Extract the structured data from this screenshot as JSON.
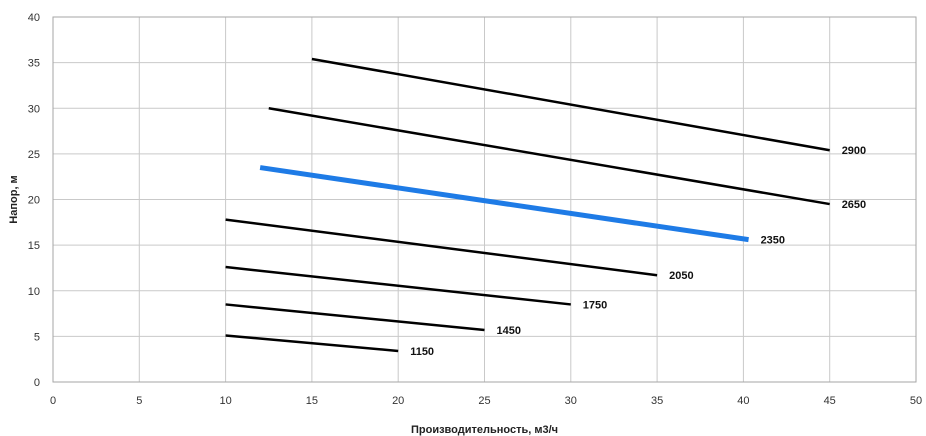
{
  "chart_data": {
    "type": "line",
    "title": "",
    "xlabel": "Производительность, м3/ч",
    "ylabel": "Напор, м",
    "xlim": [
      0,
      50
    ],
    "ylim": [
      0,
      40
    ],
    "xticks": [
      0,
      5,
      10,
      15,
      20,
      25,
      30,
      35,
      40,
      45,
      50
    ],
    "yticks": [
      0,
      5,
      10,
      15,
      20,
      25,
      30,
      35,
      40
    ],
    "grid": true,
    "legend": "none",
    "series": [
      {
        "name": "2900",
        "color": "#000000",
        "x": [
          15,
          45
        ],
        "y": [
          35.4,
          25.4
        ]
      },
      {
        "name": "2650",
        "color": "#000000",
        "x": [
          12.5,
          45
        ],
        "y": [
          30.0,
          19.5
        ]
      },
      {
        "name": "2350",
        "color": "#1e7be6",
        "x": [
          12,
          40.3
        ],
        "y": [
          23.5,
          15.6
        ]
      },
      {
        "name": "2050",
        "color": "#000000",
        "x": [
          10,
          35
        ],
        "y": [
          17.8,
          11.7
        ]
      },
      {
        "name": "1750",
        "color": "#000000",
        "x": [
          10,
          30
        ],
        "y": [
          12.6,
          8.5
        ]
      },
      {
        "name": "1450",
        "color": "#000000",
        "x": [
          10,
          25
        ],
        "y": [
          8.5,
          5.7
        ]
      },
      {
        "name": "1150",
        "color": "#000000",
        "x": [
          10,
          20
        ],
        "y": [
          5.1,
          3.4
        ]
      }
    ]
  }
}
